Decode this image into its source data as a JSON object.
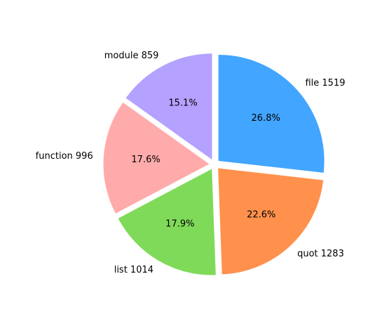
{
  "chart_data": {
    "type": "pie",
    "title": "",
    "start_angle_deg": 90,
    "direction": "clockwise",
    "exploded": true,
    "slices": [
      {
        "name": "file",
        "value": 1519,
        "label": "file 1519",
        "pct_label": "26.8%",
        "color": "#42a5ff"
      },
      {
        "name": "quot",
        "value": 1283,
        "label": "quot 1283",
        "pct_label": "22.6%",
        "color": "#ff914d"
      },
      {
        "name": "list",
        "value": 1014,
        "label": "list 1014",
        "pct_label": "17.9%",
        "color": "#80da59"
      },
      {
        "name": "function",
        "value": 996,
        "label": "function 996",
        "pct_label": "17.6%",
        "color": "#ffabab"
      },
      {
        "name": "module",
        "value": 859,
        "label": "module 859",
        "pct_label": "15.1%",
        "color": "#b5a1ff"
      }
    ]
  }
}
